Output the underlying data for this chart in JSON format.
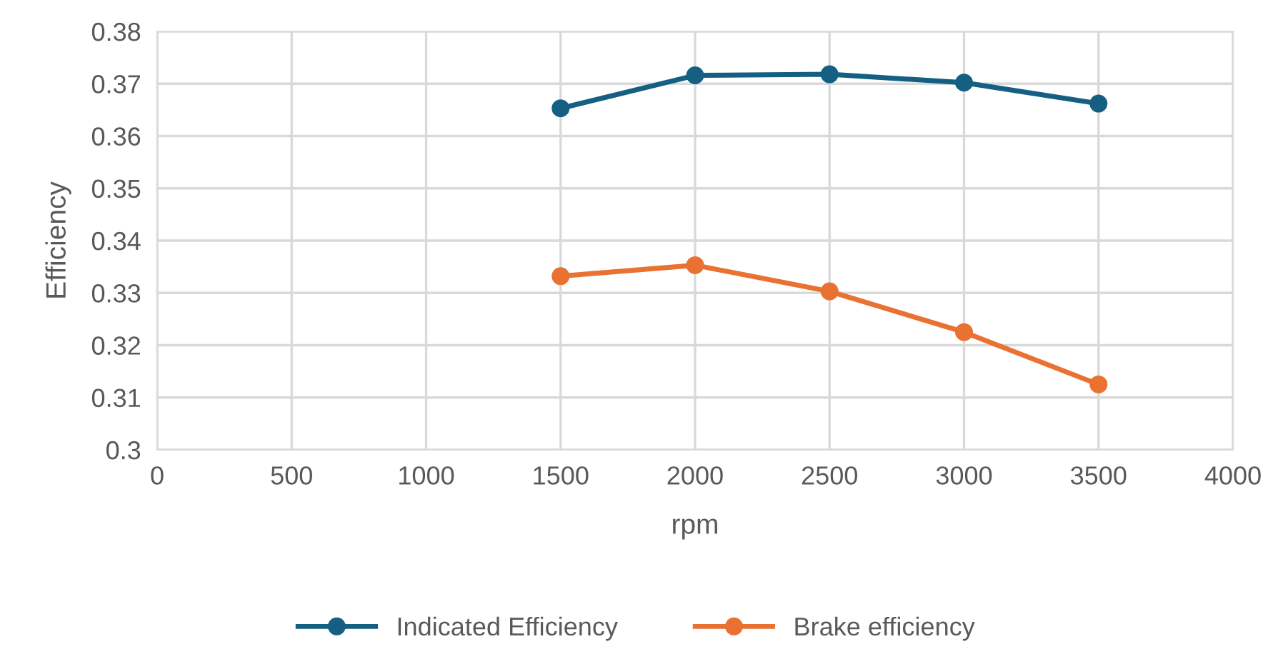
{
  "chart_data": {
    "type": "line",
    "xlabel": "rpm",
    "ylabel": "Efficiency",
    "x": [
      1500,
      2000,
      2500,
      3000,
      3500
    ],
    "series": [
      {
        "name": "Indicated Efficiency",
        "color": "#156082",
        "values": [
          0.3653,
          0.3716,
          0.3718,
          0.3702,
          0.3662
        ]
      },
      {
        "name": "Brake efficiency",
        "color": "#e97132",
        "values": [
          0.3332,
          0.3353,
          0.3303,
          0.3225,
          0.3125
        ]
      }
    ],
    "xlim": [
      0,
      4000
    ],
    "xticks": [
      0,
      500,
      1000,
      1500,
      2000,
      2500,
      3000,
      3500,
      4000
    ],
    "ylim": [
      0.3,
      0.38
    ],
    "yticks": [
      {
        "value": 0.3,
        "label": "0.3"
      },
      {
        "value": 0.31,
        "label": "0.31"
      },
      {
        "value": 0.32,
        "label": "0.32"
      },
      {
        "value": 0.33,
        "label": "0.33"
      },
      {
        "value": 0.34,
        "label": "0.34"
      },
      {
        "value": 0.35,
        "label": "0.35"
      },
      {
        "value": 0.36,
        "label": "0.36"
      },
      {
        "value": 0.37,
        "label": "0.37"
      },
      {
        "value": 0.38,
        "label": "0.38"
      }
    ],
    "grid": true,
    "legend": "bottom",
    "marker": "circle",
    "line_style": "solid"
  }
}
